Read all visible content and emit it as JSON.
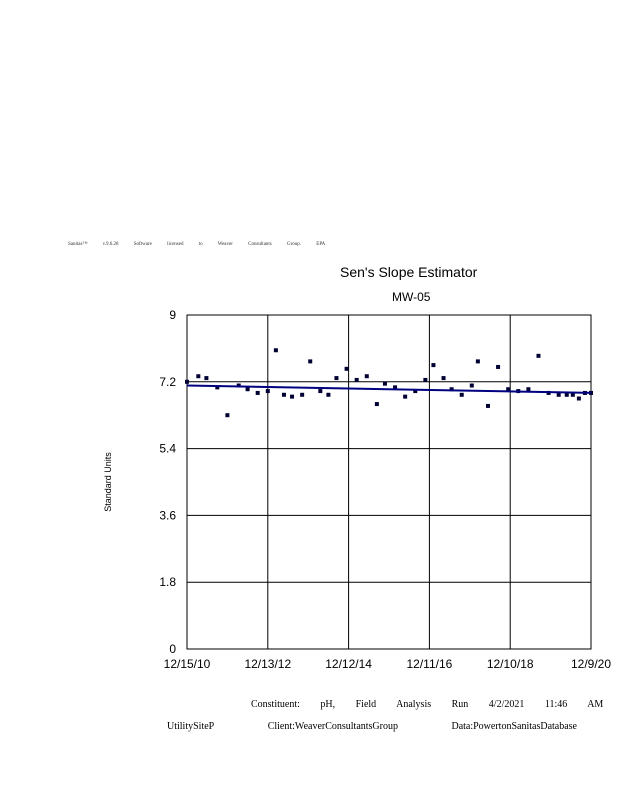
{
  "header": {
    "license_text": "Sanitas™ v.9.6.28 Software licensed to Weaver Consultants Group. EPA"
  },
  "chart_data": {
    "type": "scatter",
    "title": "Sen's Slope Estimator",
    "subtitle": "MW-05",
    "ylabel": "Standard Units",
    "xlabel": "",
    "ylim": [
      0,
      9
    ],
    "yticks": [
      "0",
      "1.8",
      "3.6",
      "5.4",
      "7.2",
      "9"
    ],
    "xticks": [
      "12/15/10",
      "12/13/12",
      "12/12/14",
      "12/11/16",
      "12/10/18",
      "12/9/20"
    ],
    "grid": true,
    "series": [
      {
        "x": [
          0.0,
          0.28,
          0.48,
          0.75,
          1.0,
          1.28,
          1.5,
          1.75,
          2.0,
          2.2,
          2.4,
          2.6,
          2.85,
          3.05,
          3.3,
          3.5,
          3.7,
          3.95,
          4.2,
          4.45,
          4.7,
          4.9,
          5.15,
          5.4,
          5.65,
          5.9,
          6.1,
          6.35,
          6.55,
          6.8,
          7.05,
          7.2,
          7.45,
          7.7,
          7.95,
          8.2,
          8.45,
          8.7,
          8.95,
          9.2,
          9.4,
          9.55,
          9.7,
          9.85,
          10.0
        ],
        "y": [
          7.2,
          7.35,
          7.3,
          7.05,
          6.3,
          7.1,
          7.0,
          6.9,
          6.95,
          8.05,
          6.85,
          6.8,
          6.85,
          7.75,
          6.95,
          6.85,
          7.3,
          7.55,
          7.25,
          7.35,
          6.6,
          7.15,
          7.05,
          6.8,
          6.95,
          7.25,
          7.65,
          7.3,
          7.0,
          6.85,
          7.1,
          7.75,
          6.55,
          7.6,
          7.0,
          6.95,
          7.0,
          7.9,
          6.9,
          6.85,
          6.85,
          6.85,
          6.75,
          6.9,
          6.9
        ]
      }
    ],
    "trend": {
      "x": [
        0,
        10
      ],
      "y": [
        7.1,
        6.9
      ]
    },
    "colors": {
      "points": "#000033",
      "trend": "#000080",
      "grid": "#000000"
    }
  },
  "footer": {
    "line1": "Constituent: pH, Field Analysis Run 4/2/2021 11:46 AM",
    "site": "UtilitySiteP",
    "client": "Client:WeaverConsultantsGroup",
    "data": "Data:PowertonSanitasDatabase"
  }
}
